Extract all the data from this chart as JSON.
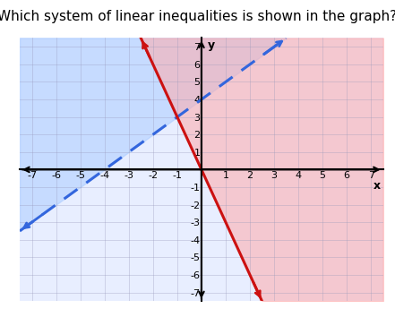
{
  "title": "Which system of linear inequalities is shown in the graph?",
  "title_fontsize": 11,
  "xlim": [
    -7.5,
    7.5
  ],
  "ylim": [
    -7.5,
    7.5
  ],
  "xticks": [
    -7,
    -6,
    -5,
    -4,
    -3,
    -2,
    -1,
    1,
    2,
    3,
    4,
    5,
    6,
    7
  ],
  "yticks": [
    -7,
    -6,
    -5,
    -4,
    -3,
    -2,
    -1,
    1,
    2,
    3,
    4,
    5,
    6,
    7
  ],
  "grid_color": "#9999bb",
  "grid_alpha": 0.4,
  "line1_slope": 1,
  "line1_intercept": 4,
  "line1_color": "#3366dd",
  "line1_lw": 2.2,
  "line1_fill_color": "#aaccff",
  "line1_fill_alpha": 0.55,
  "line2_slope": -3,
  "line2_intercept": 0,
  "line2_color": "#cc1111",
  "line2_lw": 2.2,
  "line2_fill_color": "#ffaaaa",
  "line2_fill_alpha": 0.55,
  "bg_color": "#e8eeff",
  "xlabel": "x",
  "ylabel": "y",
  "tick_fontsize": 8
}
